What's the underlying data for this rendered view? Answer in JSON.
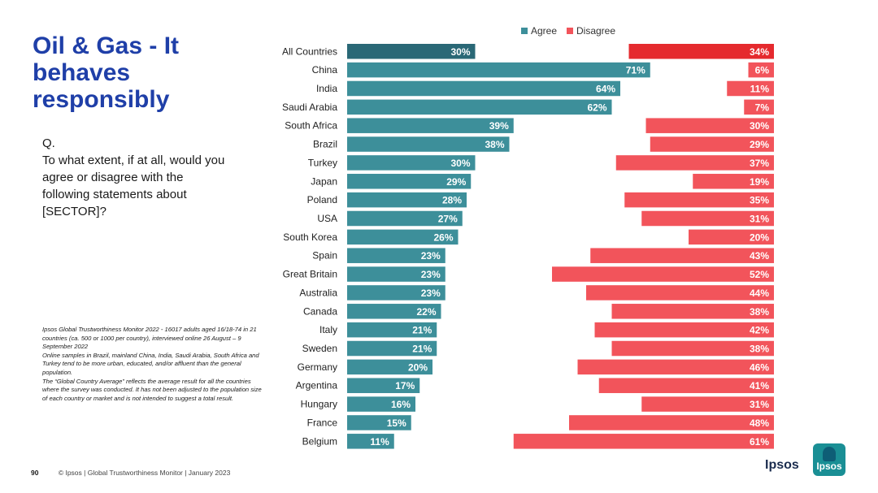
{
  "slide": {
    "title": "Oil & Gas - It behaves responsibly",
    "question_label": "Q.",
    "question_text": "To what extent, if at all, would you agree or disagree with the following statements about [SECTOR]?",
    "note_lines": [
      "Ipsos Global Trustworthiness Monitor 2022 - 16017 adults aged 16/18-74 in 21 countries (ca. 500 or 1000 per country), interviewed online 26 August – 9 September 2022",
      "Online samples in Brazil, mainland China, India, Saudi Arabia, South Africa and Turkey tend to be more urban, educated, and/or affluent than the general population.",
      "The “Global Country Average” reflects the average result for all the countries where the survey was conducted. It has not been adjusted to the population size of each country or market and is not intended to suggest a total result."
    ],
    "page_number": "90",
    "footer_text": "© Ipsos | Global Trustworthiness Monitor | January 2023",
    "brand_text": "Ipsos",
    "logo_text": "Ipsos"
  },
  "colors": {
    "title": "#1f3fa8",
    "agree": "#3d8f9a",
    "agree_highlight": "#2a6876",
    "disagree": "#f2545b",
    "disagree_highlight": "#e52a2e",
    "logo": "#1a8f95"
  },
  "chart_data": {
    "type": "bar",
    "orientation": "horizontal-diverging",
    "legend_position": "top",
    "value_suffix": "%",
    "xlim": [
      0,
      100
    ],
    "categories": [
      "All Countries",
      "China",
      "India",
      "Saudi Arabia",
      "South Africa",
      "Brazil",
      "Turkey",
      "Japan",
      "Poland",
      "USA",
      "South Korea",
      "Spain",
      "Great Britain",
      "Australia",
      "Canada",
      "Italy",
      "Sweden",
      "Germany",
      "Argentina",
      "Hungary",
      "France",
      "Belgium"
    ],
    "highlight_category": "All Countries",
    "series": [
      {
        "name": "Agree",
        "anchor": "left",
        "values": [
          30,
          71,
          64,
          62,
          39,
          38,
          30,
          29,
          28,
          27,
          26,
          23,
          23,
          23,
          22,
          21,
          21,
          20,
          17,
          16,
          15,
          11
        ]
      },
      {
        "name": "Disagree",
        "anchor": "right",
        "values": [
          34,
          6,
          11,
          7,
          30,
          29,
          37,
          19,
          35,
          31,
          20,
          43,
          52,
          44,
          38,
          42,
          38,
          46,
          41,
          31,
          48,
          61
        ]
      }
    ]
  }
}
